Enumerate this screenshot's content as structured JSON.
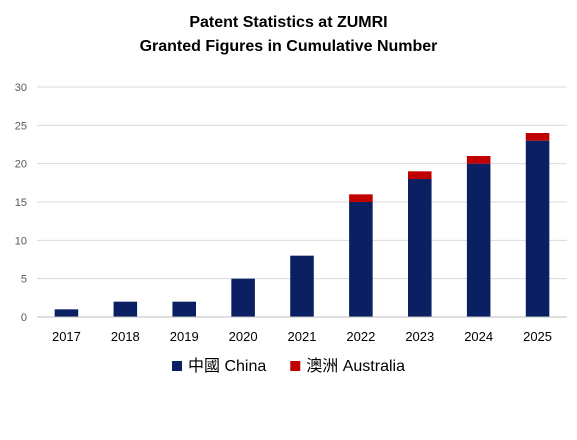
{
  "chart_data": {
    "type": "bar",
    "stacked": true,
    "title": "Patent Statistics at ZUMRI",
    "subtitle": "Granted Figures in Cumulative Number",
    "xlabel": "",
    "ylabel": "",
    "categories": [
      "2017",
      "2018",
      "2019",
      "2020",
      "2021",
      "2022",
      "2023",
      "2024",
      "2025"
    ],
    "series": [
      {
        "name": "中國 China",
        "color": "#0a2063",
        "values": [
          1,
          2,
          2,
          5,
          8,
          15,
          18,
          20,
          23
        ]
      },
      {
        "name": "澳洲 Australia",
        "color": "#c00000",
        "values": [
          0,
          0,
          0,
          0,
          0,
          1,
          1,
          1,
          1
        ]
      }
    ],
    "ylim": [
      0,
      30
    ],
    "yticks": [
      "0",
      "5",
      "10",
      "15",
      "20",
      "25",
      "30"
    ],
    "grid": true,
    "gridColor": "#d9d9d9",
    "legend": "bottom"
  }
}
